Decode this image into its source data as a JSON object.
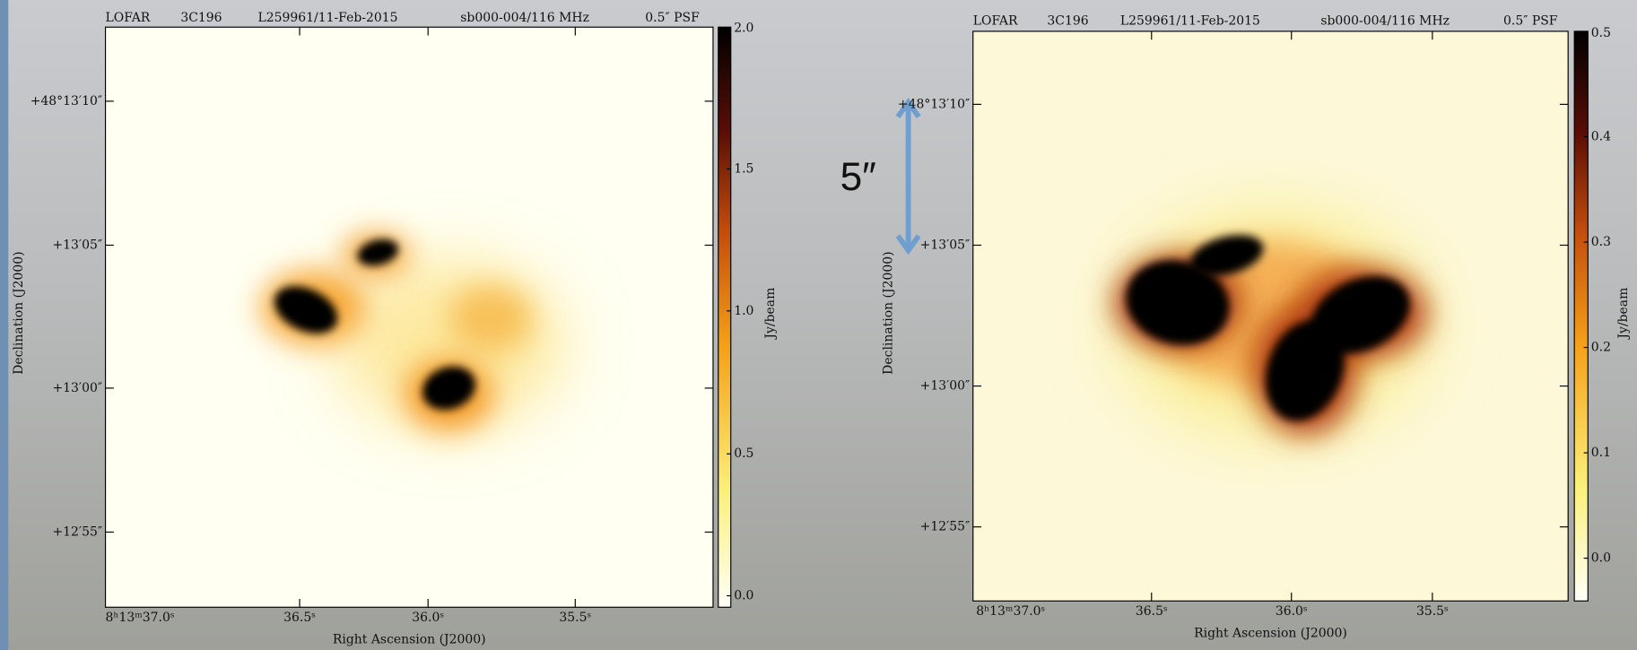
{
  "panels": [
    {
      "header": [
        "LOFAR",
        "3C196",
        "L259961/11-Feb-2015",
        "sb000-004/116 MHz",
        "0.5″ PSF"
      ],
      "y_ticks": [
        "+48°13′10″",
        "+13′05″",
        "+13′00″",
        "+12′55″"
      ],
      "x_ticks": [
        "8ʰ13ᵐ37.0ˢ",
        "36.5ˢ",
        "36.0ˢ",
        "35.5ˢ"
      ],
      "x_label": "Right Ascension (J2000)",
      "y_label": "Declination (J2000)",
      "colorbar_ticks": [
        "2.0",
        "1.5",
        "1.0",
        "0.5",
        "0.0"
      ],
      "colorbar_label": "Jy/beam"
    },
    {
      "header": [
        "LOFAR",
        "3C196",
        "L259961/11-Feb-2015",
        "sb000-004/116 MHz",
        "0.5″ PSF"
      ],
      "y_ticks": [
        "+48°13′10″",
        "+13′05″",
        "+13′00″",
        "+12′55″"
      ],
      "x_ticks": [
        "8ʰ13ᵐ37.0ˢ",
        "36.5ˢ",
        "36.0ˢ",
        "35.5ˢ"
      ],
      "x_label": "Right Ascension (J2000)",
      "y_label": "Declination (J2000)",
      "colorbar_ticks": [
        "0.5",
        "0.4",
        "0.3",
        "0.2",
        "0.1",
        "0.0"
      ],
      "colorbar_label": "Jy/beam"
    }
  ],
  "scale_annotation": "5″"
}
